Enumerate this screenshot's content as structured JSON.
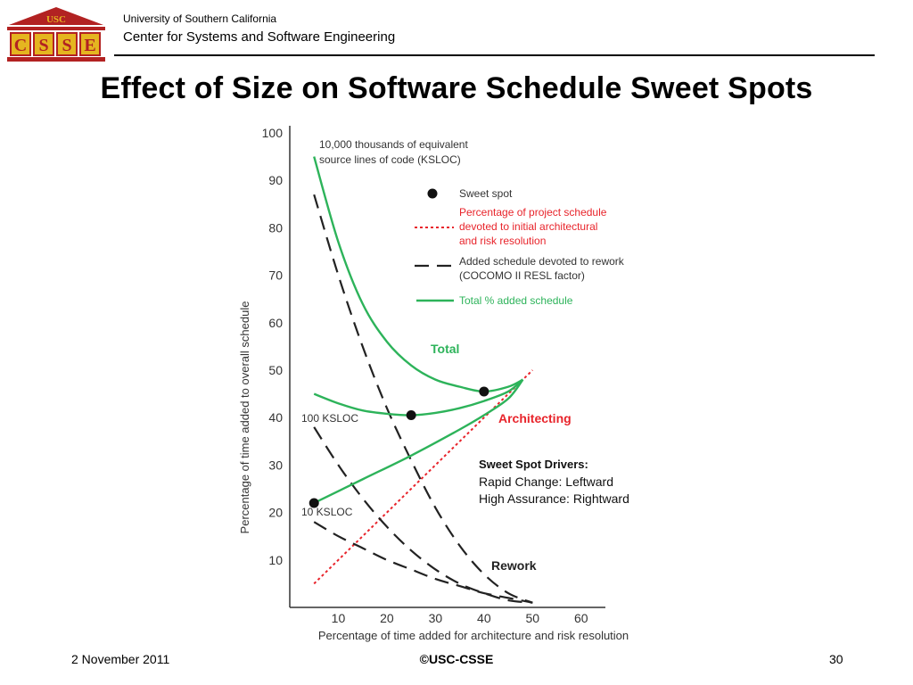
{
  "header": {
    "logo": {
      "top_text": "USC",
      "letters": [
        "C",
        "S",
        "S",
        "E"
      ]
    },
    "university": "University of Southern California",
    "center": "Center for Systems and Software Engineering"
  },
  "slide_title": "Effect of Size on Software Schedule Sweet Spots",
  "footer": {
    "date": "2 November 2011",
    "copyright": "©USC-CSSE",
    "page": "30"
  },
  "colors": {
    "total": "#2db35a",
    "architecting": "#e8242b",
    "rework": "#222222",
    "logo_red": "#b22222",
    "logo_gold": "#e5b520"
  },
  "chart_data": {
    "type": "line",
    "xlabel": "Percentage of time added for architecture and risk resolution",
    "ylabel": "Percentage of time added to overall schedule",
    "xlim": [
      0,
      65
    ],
    "ylim": [
      0,
      100
    ],
    "x_ticks": [
      10,
      20,
      30,
      40,
      50,
      60
    ],
    "y_ticks": [
      10,
      20,
      30,
      40,
      50,
      60,
      70,
      80,
      90,
      100
    ],
    "legend": {
      "placement": "top-right",
      "entries": [
        {
          "kind": "dot",
          "text": [
            "Sweet spot"
          ]
        },
        {
          "kind": "red-dotted",
          "text": [
            "Percentage of project schedule",
            "devoted to initial architectural",
            "and risk resolution"
          ]
        },
        {
          "kind": "black-dashed",
          "text": [
            "Added schedule devoted to rework",
            "(COCOMO II RESL factor)"
          ]
        },
        {
          "kind": "green-solid",
          "text": [
            "Total % added schedule"
          ]
        }
      ]
    },
    "annotations": {
      "ksloc_10000": [
        "10,000 thousands of equivalent",
        "source lines of code (KSLOC)"
      ],
      "ksloc_100": "100 KSLOC",
      "ksloc_10": "10 KSLOC",
      "total": "Total",
      "architecting": "Architecting",
      "rework": "Rework",
      "drivers_title": "Sweet Spot Drivers:",
      "drivers": [
        "Rapid Change: Leftward",
        "High Assurance: Rightward"
      ]
    },
    "series": [
      {
        "group": "architecting",
        "style": "red-dotted",
        "x": [
          5,
          50
        ],
        "y": [
          5,
          50
        ]
      },
      {
        "group": "rework",
        "style": "black-dashed",
        "size": "10,000 KSLOC",
        "x": [
          5,
          10,
          15,
          20,
          25,
          30,
          35,
          40,
          45,
          50
        ],
        "y": [
          87,
          70,
          55,
          42,
          31,
          21,
          13,
          7,
          3,
          1
        ]
      },
      {
        "group": "rework",
        "style": "black-dashed",
        "size": "100 KSLOC",
        "x": [
          5,
          10,
          15,
          20,
          25,
          30,
          35,
          40,
          45,
          50
        ],
        "y": [
          38,
          30,
          23,
          17,
          12,
          8,
          5,
          3,
          1.5,
          1
        ]
      },
      {
        "group": "rework",
        "style": "black-dashed",
        "size": "10 KSLOC",
        "x": [
          5,
          10,
          15,
          20,
          25,
          30,
          35,
          40,
          45,
          50
        ],
        "y": [
          18,
          15,
          12.5,
          10,
          8,
          6,
          4.5,
          3,
          2,
          1
        ]
      },
      {
        "group": "total",
        "style": "green-solid",
        "size": "10,000 KSLOC",
        "x": [
          5,
          10,
          15,
          20,
          25,
          30,
          35,
          40,
          45,
          48
        ],
        "y": [
          95,
          77,
          64,
          56,
          51,
          48,
          46.5,
          45.5,
          46.5,
          48
        ]
      },
      {
        "group": "total",
        "style": "green-solid",
        "size": "100 KSLOC",
        "x": [
          5,
          10,
          15,
          20,
          25,
          30,
          35,
          40,
          45,
          48
        ],
        "y": [
          45,
          43,
          41.5,
          40.8,
          40.5,
          41,
          42,
          43.5,
          45.5,
          48
        ]
      },
      {
        "group": "total",
        "style": "green-solid",
        "size": "10 KSLOC",
        "x": [
          5,
          15,
          25,
          35,
          40,
          45,
          48
        ],
        "y": [
          22,
          27,
          32,
          37.5,
          40.5,
          44,
          48
        ]
      }
    ],
    "sweet_spots": [
      {
        "size": "10,000 KSLOC",
        "x": 40,
        "y": 45.5
      },
      {
        "size": "100 KSLOC",
        "x": 25,
        "y": 40.5
      },
      {
        "size": "10 KSLOC",
        "x": 5,
        "y": 22
      }
    ]
  }
}
